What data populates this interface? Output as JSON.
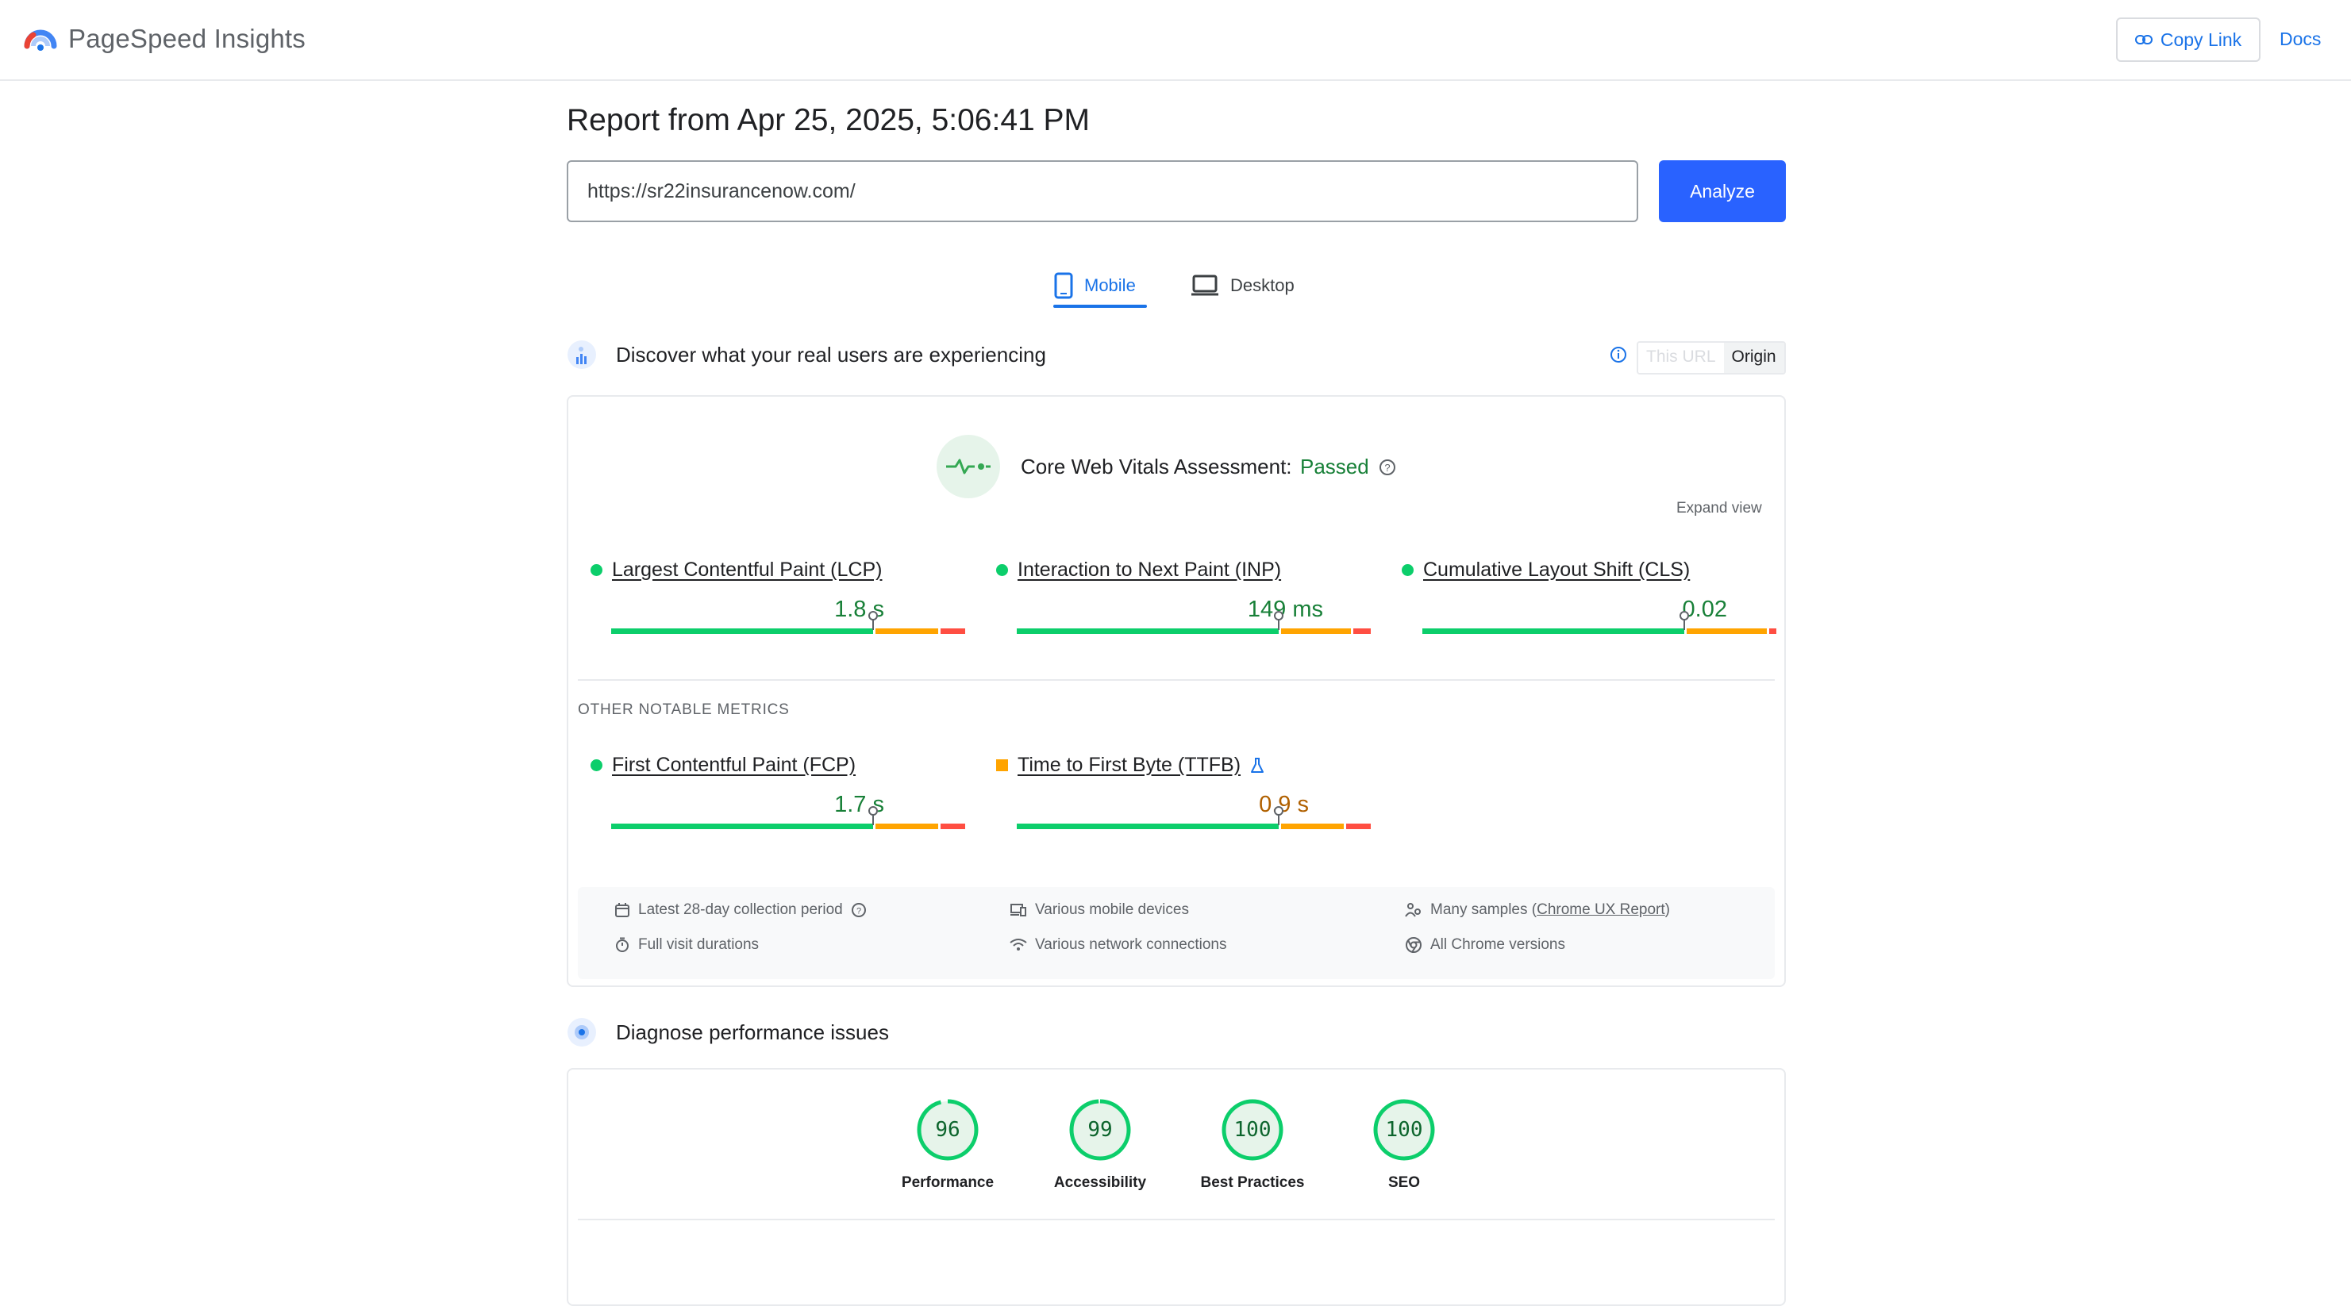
{
  "header": {
    "brand": "PageSpeed Insights",
    "copy_link_label": "Copy Link",
    "docs_label": "Docs"
  },
  "report": {
    "title": "Report from Apr 25, 2025, 5:06:41 PM",
    "url_value": "https://sr22insurancenow.com/",
    "analyze_label": "Analyze"
  },
  "tabs": [
    {
      "label": "Mobile",
      "active": true
    },
    {
      "label": "Desktop",
      "active": false
    }
  ],
  "field": {
    "heading": "Discover what your real users are experiencing",
    "toggle_url": "This URL",
    "toggle_origin": "Origin",
    "assessment_label": "Core Web Vitals Assessment:",
    "assessment_status": "Passed",
    "expand_label": "Expand view",
    "core_metrics": [
      {
        "name": "Largest Contentful Paint (LCP)",
        "value": "1.8 s",
        "rating": "good",
        "good_pct": 0.75,
        "ni_pct": 0.18,
        "poor_pct": 0.07
      },
      {
        "name": "Interaction to Next Paint (INP)",
        "value": "149 ms",
        "rating": "good",
        "good_pct": 0.75,
        "ni_pct": 0.2,
        "poor_pct": 0.05
      },
      {
        "name": "Cumulative Layout Shift (CLS)",
        "value": "0.02",
        "rating": "good",
        "good_pct": 0.75,
        "ni_pct": 0.23,
        "poor_pct": 0.02
      }
    ],
    "other_label": "OTHER NOTABLE METRICS",
    "other_metrics": [
      {
        "name": "First Contentful Paint (FCP)",
        "value": "1.7 s",
        "rating": "good",
        "good_pct": 0.75,
        "ni_pct": 0.18,
        "poor_pct": 0.07
      },
      {
        "name": "Time to First Byte (TTFB)",
        "value": "0.9 s",
        "rating": "average",
        "good_pct": 0.75,
        "ni_pct": 0.18,
        "poor_pct": 0.07
      }
    ],
    "info": {
      "collection_period": "Latest 28-day collection period",
      "visit_durations": "Full visit durations",
      "devices": "Various mobile devices",
      "network": "Various network connections",
      "samples_prefix": "Many samples (",
      "samples_link": "Chrome UX Report",
      "samples_suffix": ")",
      "chrome_versions": "All Chrome versions"
    }
  },
  "lab": {
    "heading": "Diagnose performance issues",
    "scores": [
      {
        "label": "Performance",
        "value": "96",
        "fraction": 0.96
      },
      {
        "label": "Accessibility",
        "value": "99",
        "fraction": 0.99
      },
      {
        "label": "Best Practices",
        "value": "100",
        "fraction": 1.0
      },
      {
        "label": "SEO",
        "value": "100",
        "fraction": 1.0
      }
    ]
  },
  "colors": {
    "accent": "#1a73e8",
    "analyze_bg": "#2962ff",
    "good": "#0cce6b",
    "average": "#ffa400",
    "poor": "#ff4e42",
    "value_good": "#188038",
    "value_average": "#b06000"
  }
}
